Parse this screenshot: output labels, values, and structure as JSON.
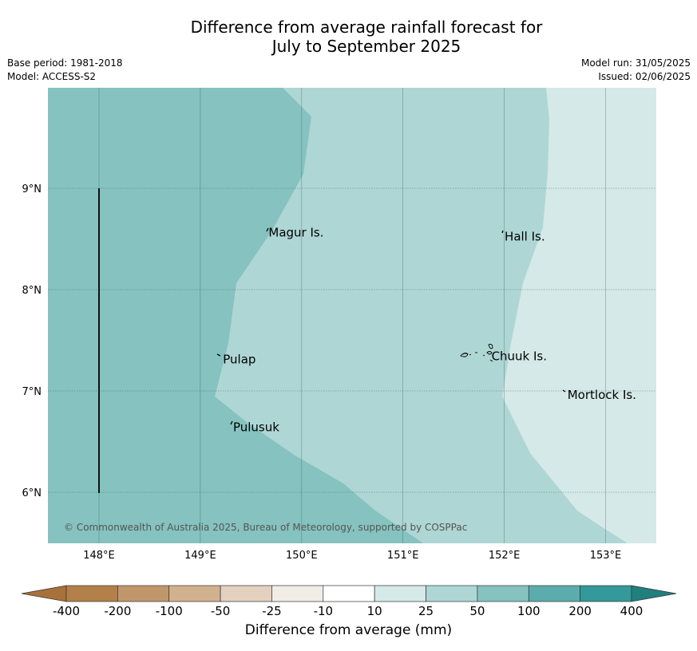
{
  "title": {
    "line1": "Difference from average rainfall forecast for",
    "line2": "July to September 2025"
  },
  "meta": {
    "base_period": "Base period: 1981-2018",
    "model": "Model: ACCESS-S2",
    "model_run": "Model run: 31/05/2025",
    "issued": "Issued: 02/06/2025"
  },
  "map": {
    "lon_labels": [
      "148°E",
      "149°E",
      "150°E",
      "151°E",
      "152°E",
      "153°E"
    ],
    "lat_labels": [
      "9°N",
      "8°N",
      "7°N",
      "6°N"
    ],
    "places": [
      {
        "name": "Magur Is.",
        "lon": 149.65,
        "lat": 8.57
      },
      {
        "name": "Hall Is.",
        "lon": 151.98,
        "lat": 8.53
      },
      {
        "name": "Pulap",
        "lon": 149.2,
        "lat": 7.32
      },
      {
        "name": "Chuuk Is.",
        "lon": 151.85,
        "lat": 7.35
      },
      {
        "name": "Mortlock Is.",
        "lon": 152.6,
        "lat": 6.97
      },
      {
        "name": "Pulusuk",
        "lon": 149.3,
        "lat": 6.65
      }
    ],
    "copyright": "© Commonwealth of Australia 2025, Bureau of Meteorology, supported by COSPPac",
    "zone_colors": {
      "50_to_100": "#85c2c0",
      "25_to_50": "#aed6d5",
      "10_to_25": "#d4e9e8"
    }
  },
  "colorbar": {
    "ticks": [
      "-400",
      "-200",
      "-100",
      "-50",
      "-25",
      "-10",
      "10",
      "25",
      "50",
      "100",
      "200",
      "400"
    ],
    "colors": [
      "#a8713a",
      "#b3804a",
      "#c0976b",
      "#d2b18f",
      "#e3d0be",
      "#f1ece6",
      "#ffffff",
      "#d4e9e8",
      "#aed6d5",
      "#85c2c0",
      "#5aadac",
      "#33999a",
      "#1f807e"
    ],
    "label": "Difference from average (mm)"
  }
}
